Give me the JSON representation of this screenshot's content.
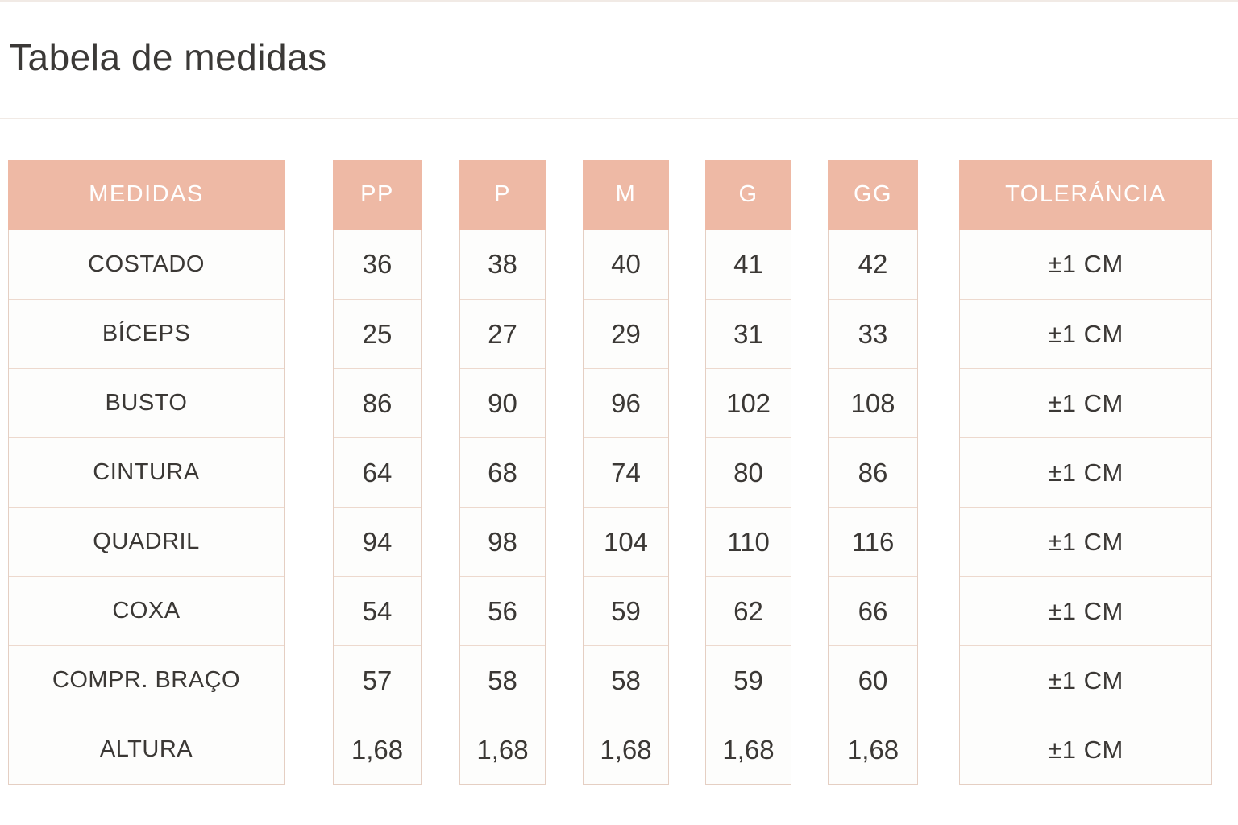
{
  "page_title": "Tabela de medidas",
  "size_table": {
    "headers": [
      {
        "id": "medidas",
        "label": "MEDIDAS"
      },
      {
        "id": "pp",
        "label": "PP"
      },
      {
        "id": "p",
        "label": "P"
      },
      {
        "id": "m",
        "label": "M"
      },
      {
        "id": "g",
        "label": "G"
      },
      {
        "id": "gg",
        "label": "GG"
      },
      {
        "id": "tolerancia",
        "label": "TOLERÁNCIA"
      }
    ],
    "rows": [
      {
        "label": "COSTADO",
        "values": [
          "36",
          "38",
          "40",
          "41",
          "42"
        ],
        "tolerance": "±1 CM"
      },
      {
        "label": "BÍCEPS",
        "values": [
          "25",
          "27",
          "29",
          "31",
          "33"
        ],
        "tolerance": "±1 CM"
      },
      {
        "label": "BUSTO",
        "values": [
          "86",
          "90",
          "96",
          "102",
          "108"
        ],
        "tolerance": "±1 CM"
      },
      {
        "label": "CINTURA",
        "values": [
          "64",
          "68",
          "74",
          "80",
          "86"
        ],
        "tolerance": "±1 CM"
      },
      {
        "label": "QUADRIL",
        "values": [
          "94",
          "98",
          "104",
          "110",
          "116"
        ],
        "tolerance": "±1 CM"
      },
      {
        "label": "COXA",
        "values": [
          "54",
          "56",
          "59",
          "62",
          "66"
        ],
        "tolerance": "±1 CM"
      },
      {
        "label": "COMPR. BRAÇO",
        "values": [
          "57",
          "58",
          "58",
          "59",
          "60"
        ],
        "tolerance": "±1 CM"
      },
      {
        "label": "ALTURA",
        "values": [
          "1,68",
          "1,68",
          "1,68",
          "1,68",
          "1,68"
        ],
        "tolerance": "±1 CM"
      }
    ]
  },
  "colors": {
    "header_bg": "#EEB9A5",
    "header_text": "#FFFFFF",
    "cell_text": "#3B3835",
    "column_border": "#E5CFC3",
    "row_divider": "#EDD9CE",
    "page_divider": "#F1EAE5",
    "background": "#FFFFFF"
  }
}
